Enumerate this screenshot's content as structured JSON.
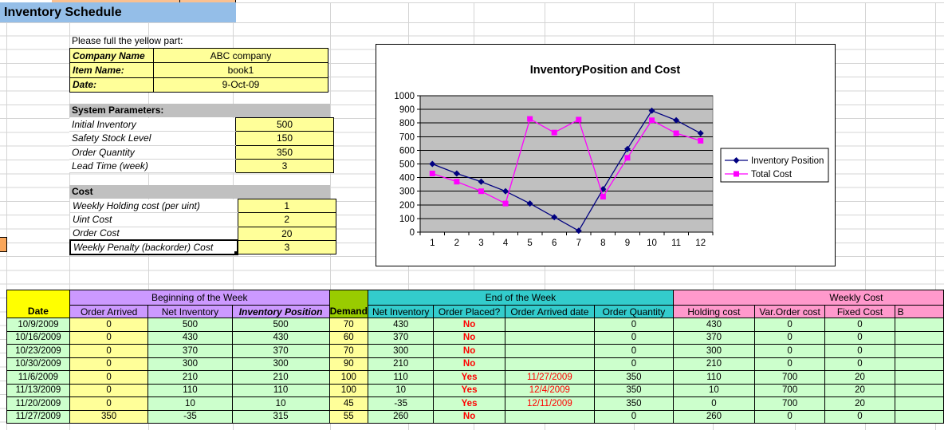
{
  "sheet": {
    "title": "Inventory Schedule",
    "instruction": "Please full the yellow part:"
  },
  "info_form": {
    "rows": [
      {
        "label": "Company Name",
        "value": "ABC company"
      },
      {
        "label": "Item Name:",
        "value": "book1"
      },
      {
        "label": "Date:",
        "value": "9-Oct-09"
      }
    ]
  },
  "system_parameters": {
    "header": "System Parameters:",
    "rows": [
      {
        "label": "Initial Inventory",
        "value": "500"
      },
      {
        "label": "Safety Stock Level",
        "value": "150"
      },
      {
        "label": "Order Quantity",
        "value": "350"
      },
      {
        "label": "Lead Time (week)",
        "value": "3"
      }
    ]
  },
  "cost_parameters": {
    "header": "Cost",
    "rows": [
      {
        "label": "Weekly Holding cost (per uint)",
        "value": "1"
      },
      {
        "label": "Uint Cost",
        "value": "2"
      },
      {
        "label": "Order Cost",
        "value": "20"
      },
      {
        "label": "Weekly Penalty (backorder) Cost",
        "value": "3",
        "selected": true
      }
    ]
  },
  "chart_data": {
    "type": "line",
    "title": "InventoryPosition and Cost",
    "categories": [
      "1",
      "2",
      "3",
      "4",
      "5",
      "6",
      "7",
      "8",
      "9",
      "10",
      "11",
      "12"
    ],
    "series": [
      {
        "name": "Inventory Position",
        "color": "#000080",
        "marker": "diamond",
        "values": [
          500,
          430,
          370,
          300,
          210,
          110,
          10,
          315,
          610,
          890,
          820,
          725
        ]
      },
      {
        "name": "Total Cost",
        "color": "#FF00FF",
        "marker": "square",
        "values": [
          430,
          370,
          300,
          210,
          830,
          730,
          825,
          260,
          545,
          820,
          725,
          670
        ]
      }
    ],
    "ylim": [
      0,
      1000
    ],
    "yticks": [
      0,
      100,
      200,
      300,
      400,
      500,
      600,
      700,
      800,
      900,
      1000
    ],
    "grid": true,
    "plot_bg": "#C0C0C0",
    "legend_position": "right"
  },
  "schedule_table": {
    "date_header": "Date",
    "demand_header": "Demand",
    "groups": {
      "beginning": {
        "label": "Beginning of the Week",
        "color": "#CC99FF",
        "columns": [
          "Order Arrived",
          "Net Inventory",
          "Inventory Position"
        ]
      },
      "end": {
        "label": "End of the Week",
        "color": "#33CCCC",
        "columns": [
          "Net Inventory",
          "Order Placed?",
          "Order Arrived date",
          "Order Quantity"
        ]
      },
      "weekly_cost": {
        "label": "Weekly Cost",
        "color": "#FF99CC",
        "columns": [
          "Holding cost",
          "Var.Order cost",
          "Fixed Cost",
          "B"
        ]
      }
    },
    "rows": [
      [
        "10/9/2009",
        "0",
        "500",
        "500",
        "70",
        "430",
        "No",
        "",
        "0",
        "430",
        "0",
        "0",
        ""
      ],
      [
        "10/16/2009",
        "0",
        "430",
        "430",
        "60",
        "370",
        "No",
        "",
        "0",
        "370",
        "0",
        "0",
        ""
      ],
      [
        "10/23/2009",
        "0",
        "370",
        "370",
        "70",
        "300",
        "No",
        "",
        "0",
        "300",
        "0",
        "0",
        ""
      ],
      [
        "10/30/2009",
        "0",
        "300",
        "300",
        "90",
        "210",
        "No",
        "",
        "0",
        "210",
        "0",
        "0",
        ""
      ],
      [
        "11/6/2009",
        "0",
        "210",
        "210",
        "100",
        "110",
        "Yes",
        "11/27/2009",
        "350",
        "110",
        "700",
        "20",
        ""
      ],
      [
        "11/13/2009",
        "0",
        "110",
        "110",
        "100",
        "10",
        "Yes",
        "12/4/2009",
        "350",
        "10",
        "700",
        "20",
        ""
      ],
      [
        "11/20/2009",
        "0",
        "10",
        "10",
        "45",
        "-35",
        "Yes",
        "12/11/2009",
        "350",
        "0",
        "700",
        "20",
        ""
      ],
      [
        "11/27/2009",
        "350",
        "-35",
        "315",
        "55",
        "260",
        "No",
        "",
        "0",
        "260",
        "0",
        "0",
        ""
      ]
    ]
  },
  "colors": {
    "title_bg": "#94BEE8",
    "input_yellow": "#FFFF99",
    "section_gray": "#C0C0C0",
    "data_green": "#CCFFCC",
    "date_header_yellow": "#FFFF00",
    "demand_green": "#99CC00",
    "status_red": "#FF0000",
    "series_navy": "#000080",
    "series_magenta": "#FF00FF"
  }
}
